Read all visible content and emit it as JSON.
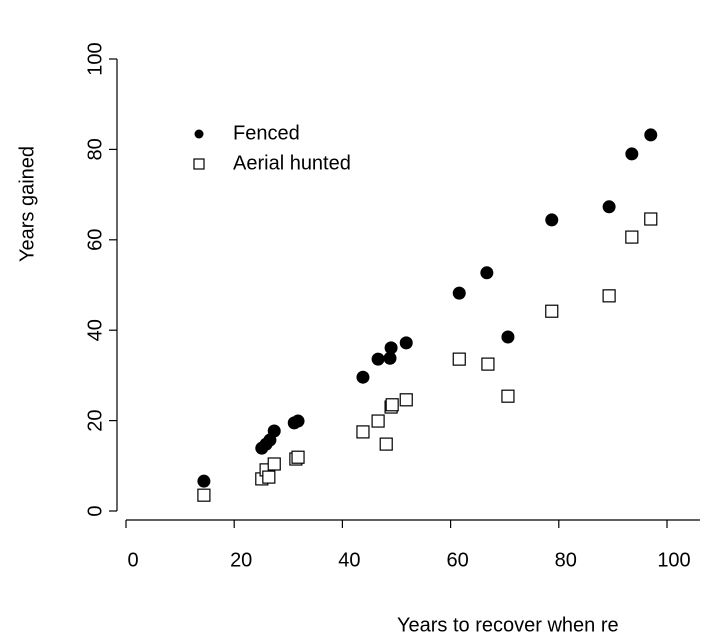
{
  "chart_data": {
    "type": "scatter",
    "x_label": "Years to recover when re",
    "y_label": "Years gained",
    "xlim": [
      0,
      100
    ],
    "xticks": [
      0,
      20,
      40,
      60,
      80,
      100
    ],
    "ylim": [
      0,
      100
    ],
    "yticks": [
      0,
      20,
      40,
      60,
      80,
      100
    ],
    "series": [
      {
        "name": "Fenced",
        "color": "#000000",
        "marker": "circle",
        "x": [
          14.4,
          25.1,
          25.9,
          26.6,
          27.4,
          31.1,
          31.8,
          43.8,
          46.6,
          48.8,
          49.0,
          51.8,
          61.6,
          66.7,
          70.6,
          78.7,
          89.3,
          93.5,
          97.0
        ],
        "values": [
          6.6,
          13.9,
          14.8,
          15.7,
          17.7,
          19.5,
          19.9,
          29.6,
          33.6,
          33.8,
          36.1,
          37.2,
          48.2,
          52.7,
          38.5,
          64.4,
          67.3,
          79.0,
          83.2
        ]
      },
      {
        "name": "Aerial hunted",
        "color": "#000000",
        "marker": "square",
        "x": [
          14.4,
          25.1,
          25.9,
          26.4,
          27.4,
          31.4,
          31.8,
          43.8,
          46.6,
          48.1,
          49.0,
          49.2,
          51.8,
          61.6,
          66.9,
          70.6,
          78.7,
          89.3,
          93.5,
          97.0
        ],
        "values": [
          3.5,
          7.1,
          9.1,
          7.5,
          10.4,
          11.5,
          11.9,
          17.5,
          19.9,
          14.8,
          23.0,
          23.5,
          24.6,
          33.6,
          32.5,
          25.4,
          44.2,
          47.6,
          60.6,
          64.6
        ]
      }
    ]
  }
}
